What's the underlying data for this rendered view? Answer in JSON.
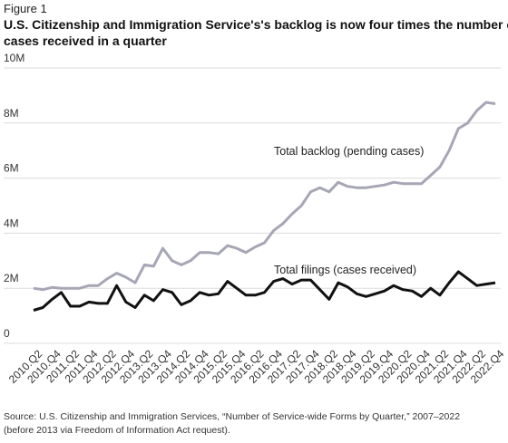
{
  "chart_data": {
    "type": "line",
    "figure_label": "Figure 1",
    "title": [
      "U.S. Citizenship and Immigration Service's's backlog is now four times the number of",
      "cases received in a quarter"
    ],
    "source": [
      "Source: U.S. Citizenship and Immigration Services, “Number of Service-wide Forms by Quarter,” 2007–2022",
      "(before 2013 via Freedom of Information Act request)."
    ],
    "categories": [
      "2010.Q2",
      null,
      "2010.Q4",
      null,
      "2011.Q2",
      null,
      "2011.Q4",
      null,
      "2012.Q2",
      null,
      "2012.Q4",
      null,
      "2013.Q2",
      null,
      "2013.Q4",
      null,
      "2014.Q2",
      null,
      "2014.Q4",
      null,
      "2015.Q2",
      null,
      "2015.Q4",
      null,
      "2016.Q2",
      null,
      "2016.Q4",
      null,
      "2017.Q2",
      null,
      "2017.Q4",
      null,
      "2018.Q2",
      null,
      "2018.Q4",
      null,
      "2019.Q2",
      null,
      "2019.Q4",
      null,
      "2020.Q2",
      null,
      "2020.Q4",
      null,
      "2021.Q2",
      null,
      "2021.Q4",
      null,
      "2022.Q2",
      null,
      "2022.Q4"
    ],
    "series": [
      {
        "name": "Total backlog (pending cases)",
        "color": "#a6a6b6",
        "values": [
          2000000,
          1950000,
          2030000,
          2000000,
          2000000,
          2000000,
          2100000,
          2100000,
          2350000,
          2550000,
          2400000,
          2200000,
          2850000,
          2800000,
          3450000,
          3000000,
          2850000,
          3000000,
          3300000,
          3300000,
          3250000,
          3550000,
          3450000,
          3300000,
          3500000,
          3650000,
          4100000,
          4350000,
          4700000,
          5000000,
          5500000,
          5650000,
          5500000,
          5850000,
          5700000,
          5650000,
          5650000,
          5700000,
          5750000,
          5850000,
          5800000,
          5800000,
          5800000,
          6100000,
          6400000,
          7000000,
          7800000,
          8000000,
          8450000,
          8750000,
          8700000
        ]
      },
      {
        "name": "Total filings (cases received)",
        "color": "#111111",
        "values": [
          1200000,
          1300000,
          1600000,
          1850000,
          1350000,
          1350000,
          1500000,
          1450000,
          1450000,
          2100000,
          1500000,
          1300000,
          1750000,
          1550000,
          1950000,
          1850000,
          1400000,
          1550000,
          1850000,
          1750000,
          1800000,
          2250000,
          2000000,
          1750000,
          1750000,
          1850000,
          2250000,
          2350000,
          2150000,
          2300000,
          2300000,
          1950000,
          1600000,
          2200000,
          2050000,
          1800000,
          1700000,
          1800000,
          1900000,
          2100000,
          1950000,
          1900000,
          1700000,
          2000000,
          1750000,
          2200000,
          2600000,
          2350000,
          2100000,
          2150000,
          2200000
        ]
      }
    ],
    "ylim": [
      0,
      10000000
    ],
    "yticks": [
      0,
      {
        "value": 2000000,
        "label": "2M"
      },
      {
        "value": 4000000,
        "label": "4M"
      },
      {
        "value": 6000000,
        "label": "6M"
      },
      {
        "value": 8000000,
        "label": "8M"
      },
      {
        "value": 10000000,
        "label": "10M"
      }
    ],
    "grid": true
  }
}
